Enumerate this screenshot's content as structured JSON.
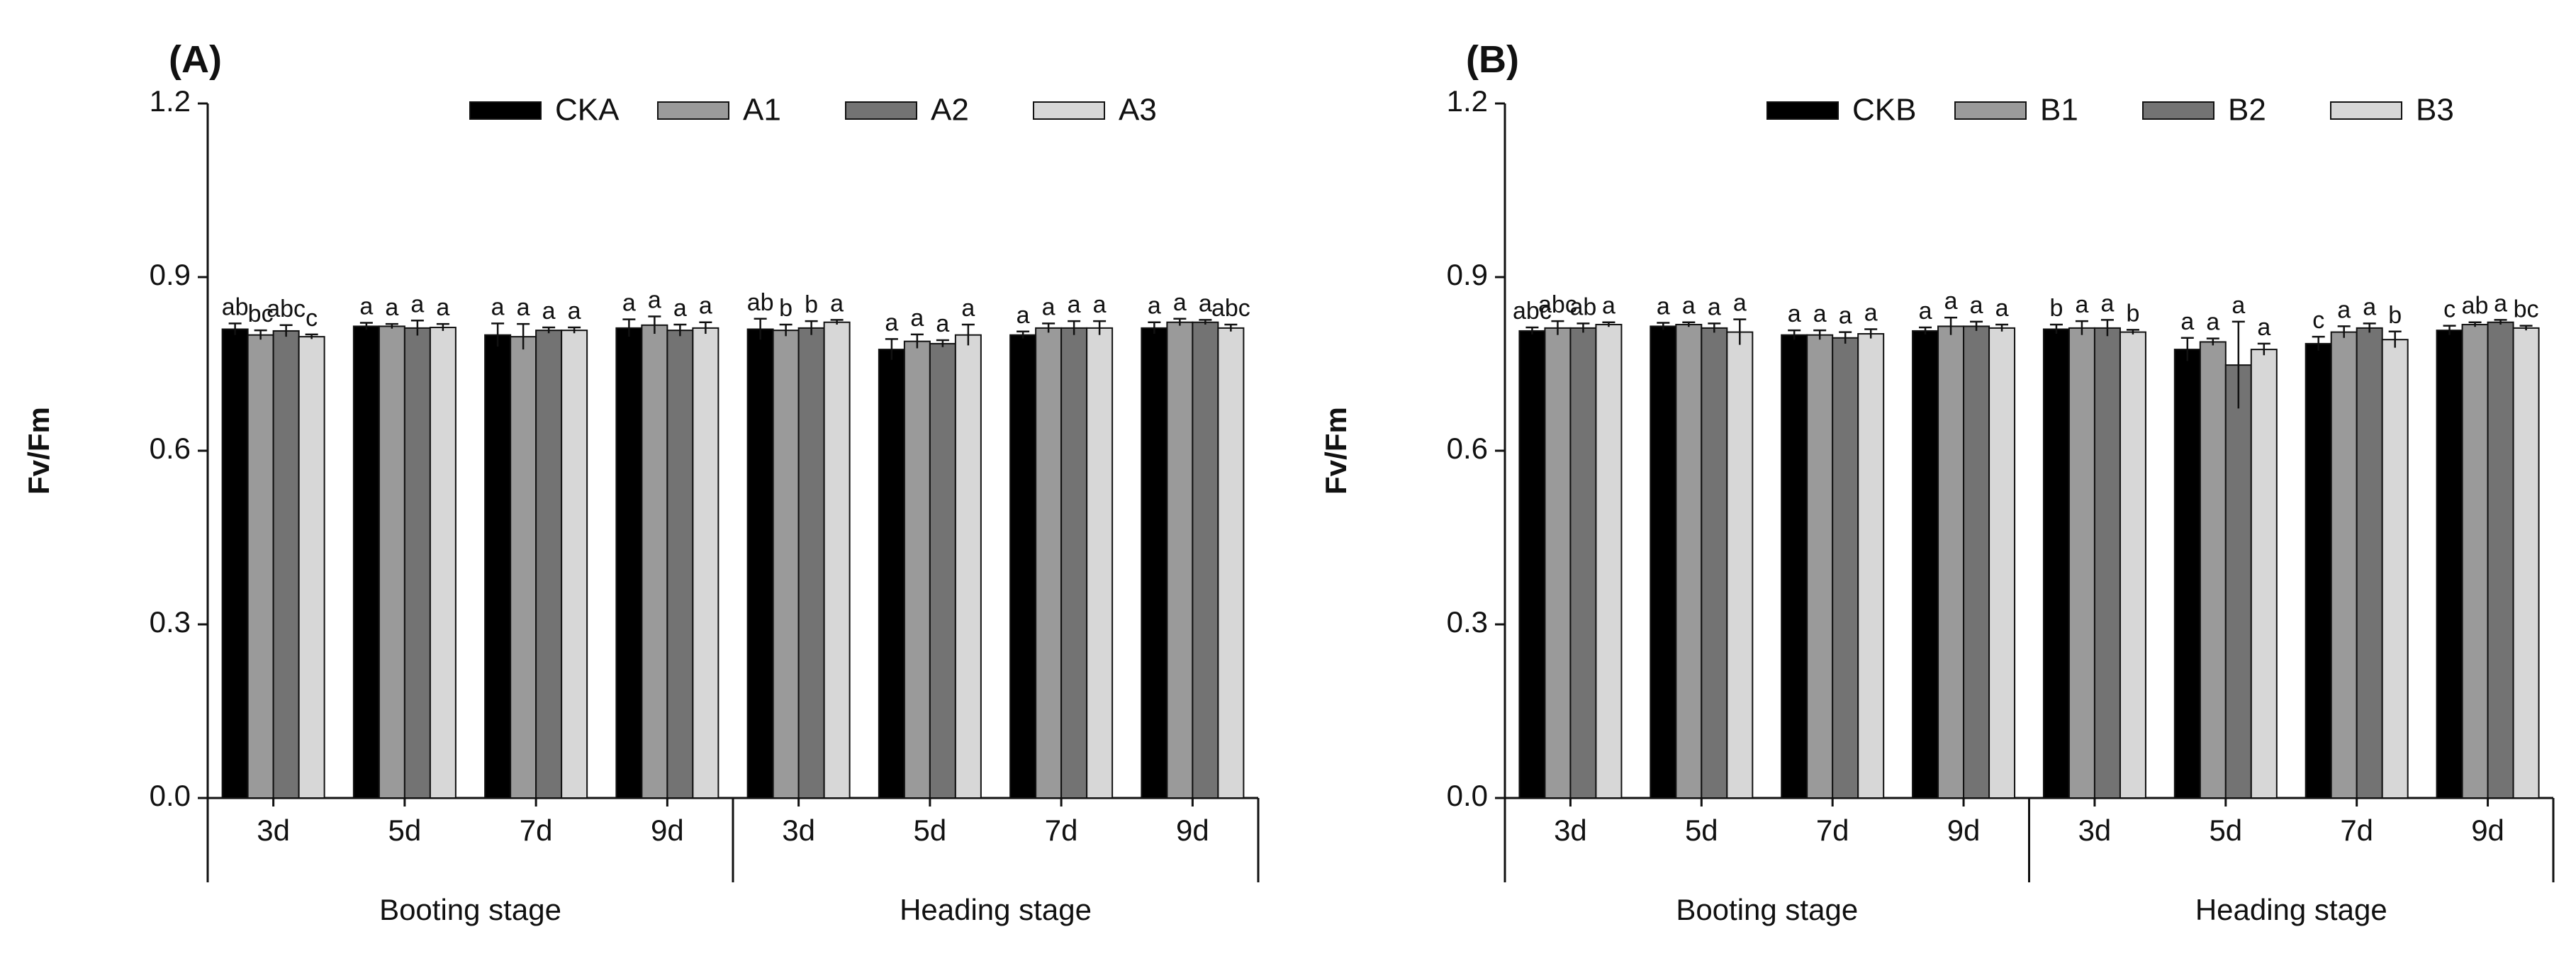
{
  "chart_data": [
    {
      "type": "bar",
      "panel_label": "(A)",
      "ylabel": "Fv/Fm",
      "ylim": [
        0,
        1.2
      ],
      "yticks": [
        "0.0",
        "0.3",
        "0.6",
        "0.9",
        "1.2"
      ],
      "categories": [
        "3d",
        "5d",
        "7d",
        "9d",
        "3d",
        "5d",
        "7d",
        "9d"
      ],
      "groups": [
        "Booting stage",
        "Heading stage"
      ],
      "legend_position": "top-right",
      "series": [
        {
          "name": "CKA",
          "color": "#000000",
          "values": [
            0.81,
            0.815,
            0.8,
            0.812,
            0.81,
            0.775,
            0.8,
            0.812
          ],
          "errors": [
            0.01,
            0.006,
            0.02,
            0.015,
            0.018,
            0.018,
            0.006,
            0.01
          ],
          "letters": [
            "ab",
            "a",
            "a",
            "a",
            "ab",
            "a",
            "a",
            "a"
          ]
        },
        {
          "name": "A1",
          "color": "#9a9a9a",
          "values": [
            0.8,
            0.815,
            0.797,
            0.817,
            0.808,
            0.789,
            0.812,
            0.822
          ],
          "errors": [
            0.008,
            0.004,
            0.022,
            0.015,
            0.01,
            0.012,
            0.008,
            0.006
          ],
          "letters": [
            "bc",
            "a",
            "a",
            "a",
            "b",
            "a",
            "a",
            "a"
          ]
        },
        {
          "name": "A2",
          "color": "#737373",
          "values": [
            0.807,
            0.812,
            0.808,
            0.808,
            0.812,
            0.785,
            0.812,
            0.822
          ],
          "errors": [
            0.01,
            0.013,
            0.005,
            0.01,
            0.012,
            0.006,
            0.012,
            0.004
          ],
          "letters": [
            "abc",
            "a",
            "a",
            "a",
            "b",
            "a",
            "a",
            "a"
          ]
        },
        {
          "name": "A3",
          "color": "#d7d7d7",
          "values": [
            0.797,
            0.813,
            0.808,
            0.812,
            0.822,
            0.8,
            0.812,
            0.812
          ],
          "errors": [
            0.004,
            0.006,
            0.005,
            0.01,
            0.004,
            0.018,
            0.012,
            0.006
          ],
          "letters": [
            "c",
            "a",
            "a",
            "a",
            "a",
            "a",
            "a",
            "abc"
          ]
        }
      ]
    },
    {
      "type": "bar",
      "panel_label": "(B)",
      "ylabel": "Fv/Fm",
      "ylim": [
        0,
        1.2
      ],
      "yticks": [
        "0.0",
        "0.3",
        "0.6",
        "0.9",
        "1.2"
      ],
      "categories": [
        "3d",
        "5d",
        "7d",
        "9d",
        "3d",
        "5d",
        "7d",
        "9d"
      ],
      "groups": [
        "Booting stage",
        "Heading stage"
      ],
      "legend_position": "top-right",
      "series": [
        {
          "name": "CKB",
          "color": "#000000",
          "values": [
            0.807,
            0.815,
            0.8,
            0.807,
            0.81,
            0.775,
            0.785,
            0.808
          ],
          "errors": [
            0.006,
            0.006,
            0.008,
            0.006,
            0.008,
            0.02,
            0.012,
            0.008
          ],
          "letters": [
            "abc",
            "a",
            "a",
            "a",
            "b",
            "a",
            "c",
            "c"
          ]
        },
        {
          "name": "B1",
          "color": "#9a9a9a",
          "values": [
            0.812,
            0.818,
            0.8,
            0.815,
            0.812,
            0.788,
            0.805,
            0.818
          ],
          "errors": [
            0.012,
            0.004,
            0.008,
            0.015,
            0.012,
            0.006,
            0.01,
            0.004
          ],
          "letters": [
            "abc",
            "a",
            "a",
            "a",
            "a",
            "a",
            "a",
            "ab"
          ]
        },
        {
          "name": "B2",
          "color": "#737373",
          "values": [
            0.812,
            0.812,
            0.795,
            0.815,
            0.812,
            0.748,
            0.812,
            0.822
          ],
          "errors": [
            0.008,
            0.008,
            0.01,
            0.008,
            0.014,
            0.075,
            0.008,
            0.004
          ],
          "letters": [
            "ab",
            "a",
            "a",
            "a",
            "a",
            "a",
            "a",
            "a"
          ]
        },
        {
          "name": "B3",
          "color": "#d7d7d7",
          "values": [
            0.818,
            0.805,
            0.802,
            0.812,
            0.805,
            0.775,
            0.792,
            0.812
          ],
          "errors": [
            0.004,
            0.022,
            0.008,
            0.006,
            0.004,
            0.01,
            0.014,
            0.004
          ],
          "letters": [
            "a",
            "a",
            "a",
            "a",
            "b",
            "a",
            "b",
            "bc"
          ]
        }
      ]
    }
  ]
}
